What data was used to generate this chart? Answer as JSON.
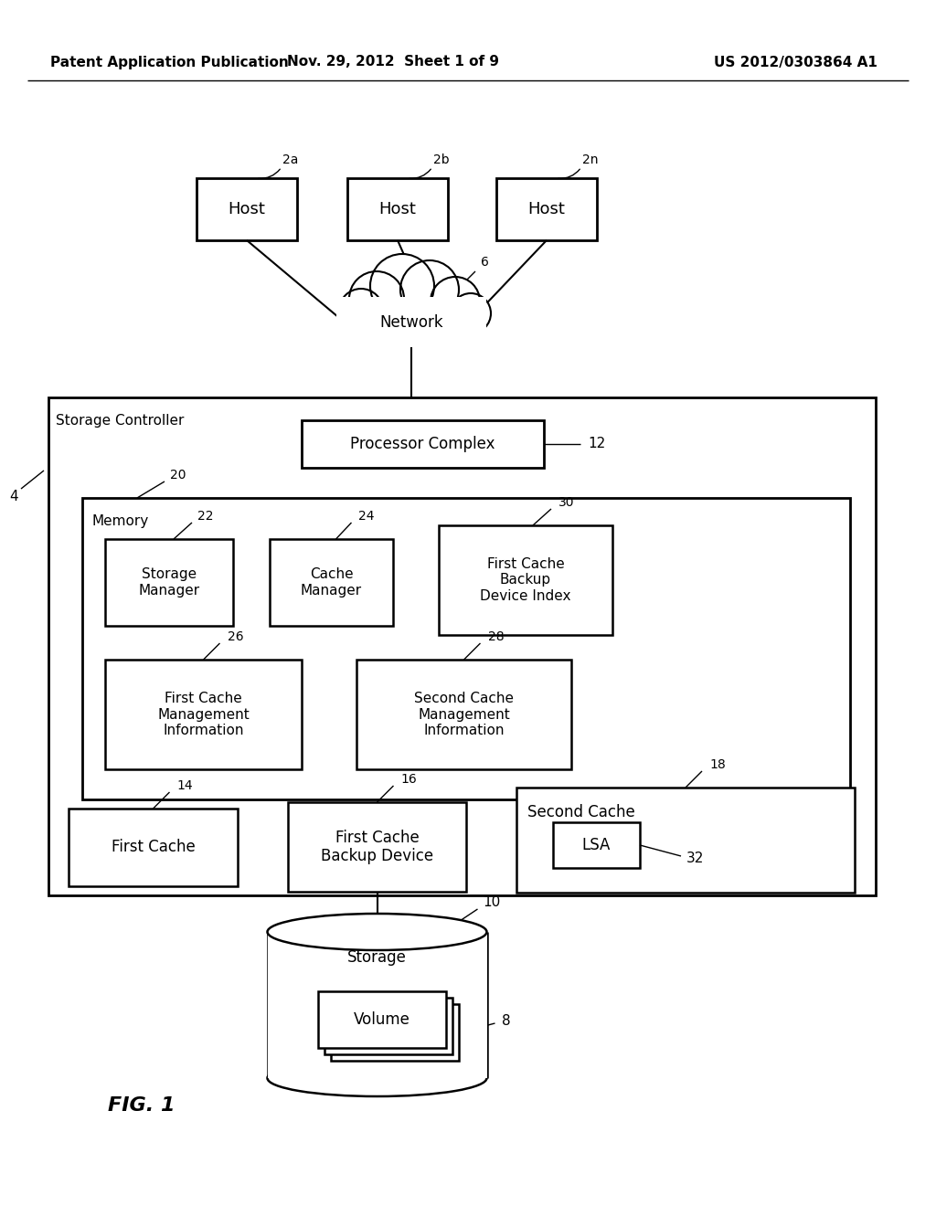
{
  "bg_color": "#ffffff",
  "header_left": "Patent Application Publication",
  "header_mid": "Nov. 29, 2012  Sheet 1 of 9",
  "header_right": "US 2012/0303864 A1",
  "fig_label": "FIG. 1",
  "labels": {
    "host1": "Host",
    "host2": "Host",
    "host3": "Host",
    "network": "Network",
    "storage_controller": "Storage Controller",
    "processor_complex": "Processor Complex",
    "memory": "Memory",
    "storage_manager": "Storage\nManager",
    "cache_manager": "Cache\nManager",
    "first_cache_backup_index": "First Cache\nBackup\nDevice Index",
    "first_cache_mgmt": "First Cache\nManagement\nInformation",
    "second_cache_mgmt": "Second Cache\nManagement\nInformation",
    "first_cache": "First Cache",
    "first_cache_backup": "First Cache\nBackup Device",
    "second_cache": "Second Cache",
    "lsa": "LSA",
    "storage": "Storage",
    "volume": "Volume"
  },
  "ref_nums": {
    "host1": "2a",
    "host2": "2b",
    "host3": "2n",
    "network": "6",
    "storage_controller": "4",
    "processor_complex": "12",
    "memory": "20",
    "storage_manager": "22",
    "cache_manager": "24",
    "first_cache_backup_index": "30",
    "first_cache_mgmt": "26",
    "second_cache_mgmt": "28",
    "first_cache": "14",
    "first_cache_backup": "16",
    "second_cache": "18",
    "lsa": "32",
    "storage": "10",
    "volume": "8"
  }
}
